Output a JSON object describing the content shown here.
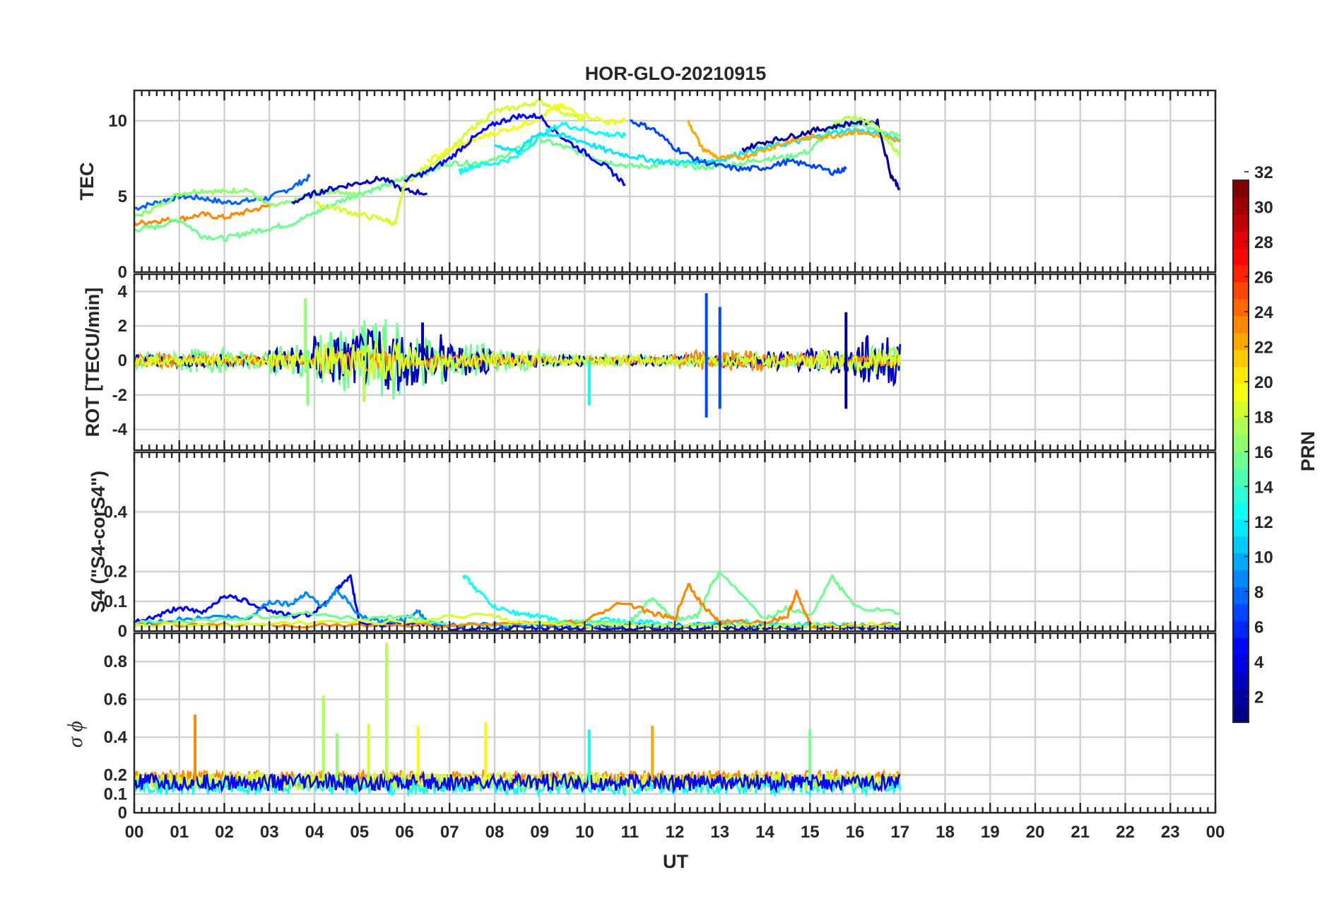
{
  "chart_data": {
    "type": "line",
    "title": "HOR-GLO-20210915",
    "xlabel": "UT",
    "x_ticks": [
      "00",
      "01",
      "02",
      "03",
      "04",
      "05",
      "06",
      "07",
      "08",
      "09",
      "10",
      "11",
      "12",
      "13",
      "14",
      "15",
      "16",
      "17",
      "18",
      "19",
      "20",
      "21",
      "22",
      "23",
      "00"
    ],
    "xlim": [
      0,
      24
    ],
    "grid": true,
    "colorbar": {
      "label": "PRN",
      "range": [
        1,
        32
      ],
      "ticks": [
        "2",
        "4",
        "6",
        "8",
        "10",
        "12",
        "14",
        "16",
        "18",
        "20",
        "22",
        "24",
        "26",
        "28",
        "30",
        "32"
      ],
      "colormap": "jet"
    },
    "panels": [
      {
        "ylabel": "TEC",
        "ylim": [
          0,
          12
        ],
        "yticks": [
          "0",
          "5",
          "10"
        ],
        "series": [
          {
            "prn": 8,
            "x": [
              0,
              0.5,
              1,
              1.5,
              2,
              2.5,
              3,
              3.5,
              3.9
            ],
            "y": [
              4.2,
              4.6,
              5.0,
              4.9,
              4.6,
              4.7,
              4.9,
              5.6,
              6.3
            ]
          },
          {
            "prn": 17,
            "x": [
              0,
              0.5,
              1,
              1.5,
              2,
              2.5,
              3,
              3.5,
              4,
              4.5,
              5.0
            ],
            "y": [
              3.6,
              4.3,
              5.2,
              5.4,
              5.3,
              5.5,
              4.3,
              4.6,
              5.2,
              5.4,
              5.0
            ]
          },
          {
            "prn": 24,
            "x": [
              0,
              0.5,
              1,
              1.5,
              2,
              2.5,
              3.0
            ],
            "y": [
              3.2,
              3.4,
              3.5,
              3.8,
              3.6,
              4.0,
              4.4
            ]
          },
          {
            "prn": 16,
            "x": [
              0,
              0.5,
              1,
              1.5,
              2,
              2.5,
              3,
              3.5,
              4,
              4.5,
              5,
              5.5,
              6,
              6.5,
              7,
              7.5,
              8,
              8.5,
              9,
              9.5,
              10,
              10.5,
              11,
              11.5,
              12,
              12.5,
              13,
              13.5,
              14,
              14.5,
              15,
              15.5,
              16,
              16.5,
              17
            ],
            "y": [
              2.8,
              3.0,
              3.5,
              2.4,
              2.2,
              2.6,
              2.9,
              3.2,
              3.9,
              4.6,
              5.2,
              5.6,
              6.2,
              6.6,
              7.2,
              7.2,
              7.4,
              8.1,
              8.8,
              8.3,
              7.8,
              7.3,
              7.0,
              7.0,
              7.3,
              6.9,
              7.0,
              7.2,
              7.5,
              7.6,
              8.0,
              9.6,
              9.8,
              9.3,
              9.0
            ]
          },
          {
            "prn": 3,
            "x": [
              3.5,
              4,
              4.5,
              5,
              5.5,
              6,
              6.5
            ],
            "y": [
              4.6,
              5.2,
              5.6,
              5.9,
              6.2,
              5.4,
              5.2
            ]
          },
          {
            "prn": 19,
            "x": [
              4,
              4.5,
              5,
              5.5,
              5.8,
              6,
              6.5,
              7,
              7.5,
              8,
              8.5,
              9,
              9.5,
              10.0
            ],
            "y": [
              4.5,
              4.2,
              3.8,
              3.5,
              3.2,
              5.9,
              7.0,
              8.0,
              9.5,
              10.6,
              10.9,
              11.3,
              10.6,
              10.0
            ]
          },
          {
            "prn": 20,
            "x": [
              6.5,
              7,
              7.5,
              8,
              8.5,
              9,
              9.4,
              9.8,
              10.5,
              10.9
            ],
            "y": [
              7.3,
              8.1,
              8.7,
              9.2,
              9.6,
              10.2,
              11.0,
              10.6,
              9.9,
              10.0
            ]
          },
          {
            "prn": 5,
            "x": [
              6.0,
              6.5,
              7,
              7.5,
              8,
              8.5,
              9,
              9.5,
              10,
              10.5,
              10.9
            ],
            "y": [
              6.1,
              6.6,
              7.5,
              8.8,
              9.8,
              10.3,
              10.3,
              8.9,
              7.9,
              6.9,
              5.8
            ]
          },
          {
            "prn": 13,
            "x": [
              7.2,
              7.5,
              8,
              8.5,
              9,
              9.5,
              10,
              10.5,
              10.9
            ],
            "y": [
              6.6,
              7.0,
              7.2,
              7.6,
              9.0,
              9.8,
              9.4,
              9.1,
              9.0
            ]
          },
          {
            "prn": 12,
            "x": [
              8.0,
              8.5,
              9,
              9.5,
              10,
              10.5,
              11,
              11.5,
              12,
              12.5,
              13,
              13.5,
              14,
              14.5,
              15,
              15.5,
              16,
              16.5,
              17
            ],
            "y": [
              8.4,
              8.0,
              9.2,
              9.0,
              8.6,
              8.0,
              7.7,
              7.4,
              7.2,
              7.3,
              7.4,
              7.9,
              8.2,
              8.5,
              8.8,
              9.2,
              9.4,
              9.1,
              8.8
            ]
          },
          {
            "prn": 7,
            "x": [
              11,
              11.5,
              12,
              12.5,
              13,
              13.5,
              14,
              14.5,
              15,
              15.5,
              15.8
            ],
            "y": [
              10.0,
              9.5,
              8.2,
              7.4,
              7.0,
              6.8,
              6.9,
              7.3,
              7.1,
              6.6,
              6.8
            ]
          },
          {
            "prn": 23,
            "x": [
              12.3,
              12.6,
              13,
              13.5,
              14,
              14.5,
              15,
              15.5,
              16,
              16.5,
              17
            ],
            "y": [
              10.0,
              8.2,
              7.5,
              7.6,
              8.1,
              8.6,
              8.9,
              9.0,
              9.3,
              9.0,
              8.6
            ]
          },
          {
            "prn": 2,
            "x": [
              13.5,
              14,
              14.5,
              15,
              15.5,
              16,
              16.5,
              16.8,
              17
            ],
            "y": [
              8.1,
              8.6,
              8.9,
              9.3,
              9.6,
              9.9,
              9.9,
              6.4,
              5.5
            ]
          },
          {
            "prn": 18,
            "x": [
              15.5,
              16,
              16.5,
              17
            ],
            "y": [
              9.8,
              10.3,
              9.6,
              7.6
            ]
          }
        ]
      },
      {
        "ylabel": "ROT [TECU/min]",
        "ylim": [
          -5.2,
          5
        ],
        "yticks": [
          "-4",
          "-2",
          "0",
          "2",
          "4"
        ],
        "series": [
          {
            "prn": 16,
            "amplitude": [
              0.5,
              0.7,
              0.5,
              0.9,
              1.8,
              2.4,
              1.6,
              1.0,
              0.6,
              0.4,
              0.3,
              0.3,
              0.3,
              0.5,
              0.4,
              0.6,
              0.9,
              0.6,
              0.4
            ]
          },
          {
            "prn": 3,
            "amplitude": [
              0.4,
              0.4,
              0.3,
              0.8,
              1.5,
              1.8,
              1.6,
              0.9,
              0.4,
              0.3,
              0.2,
              0.3,
              0.3,
              0.4,
              0.6,
              0.8,
              1.5,
              1.0,
              0.7
            ]
          },
          {
            "prn": 24,
            "amplitude": [
              0.4,
              0.3,
              0.3,
              0.3,
              0.6,
              0.6,
              0.4,
              0.3,
              0.3,
              0.2,
              0.2,
              0.2,
              0.6,
              0.6,
              0.4,
              0.3,
              0.3,
              0.3,
              0.3
            ]
          },
          {
            "prn": 19,
            "amplitude": [
              0.3,
              0.3,
              0.3,
              0.5,
              1.0,
              1.2,
              0.8,
              0.5,
              0.4,
              0.3,
              0.3,
              0.3,
              0.3,
              0.4,
              0.4,
              0.6,
              0.8,
              0.5,
              0.4
            ]
          }
        ],
        "spikes": [
          {
            "x": 12.7,
            "y": 3.9,
            "prn": 7
          },
          {
            "x": 12.7,
            "y": -3.3,
            "prn": 7
          },
          {
            "x": 13.0,
            "y": 3.1,
            "prn": 7
          },
          {
            "x": 13.0,
            "y": -2.8,
            "prn": 7
          },
          {
            "x": 3.8,
            "y": 3.6,
            "prn": 17
          },
          {
            "x": 3.85,
            "y": -2.6,
            "prn": 17
          },
          {
            "x": 10.1,
            "y": -2.6,
            "prn": 13
          },
          {
            "x": 15.8,
            "y": 2.8,
            "prn": 2
          },
          {
            "x": 15.8,
            "y": -2.8,
            "prn": 2
          },
          {
            "x": 6.4,
            "y": 2.2,
            "prn": 3
          },
          {
            "x": 5.1,
            "y": -2.4,
            "prn": 18
          }
        ]
      },
      {
        "ylabel": "S4 (\"S4-corS4\")",
        "ylim": [
          0,
          0.6
        ],
        "yticks": [
          "0",
          "0.1",
          "0.2",
          "0.4"
        ],
        "series": [
          {
            "prn": 5,
            "x": [
              0,
              0.5,
              1,
              1.5,
              2,
              2.5,
              3,
              3.5,
              4,
              4.5,
              4.8,
              5,
              5.5,
              6,
              6.5,
              7,
              8,
              9,
              10,
              11,
              12,
              13,
              14,
              15,
              16,
              17
            ],
            "y": [
              0.03,
              0.05,
              0.08,
              0.06,
              0.12,
              0.1,
              0.07,
              0.05,
              0.06,
              0.14,
              0.18,
              0.03,
              0.02,
              0.03,
              0.02,
              0.01,
              0.01,
              0.01,
              0.01,
              0.01,
              0.01,
              0.01,
              0.01,
              0.01,
              0.01,
              0.01
            ]
          },
          {
            "prn": 9,
            "x": [
              0,
              1,
              2,
              2.5,
              3,
              3.5,
              3.8,
              4.2,
              4.5,
              5,
              5.5,
              6,
              6.3,
              6.5,
              7,
              8,
              9,
              10,
              11,
              12,
              13,
              14,
              15,
              16,
              17
            ],
            "y": [
              0.02,
              0.04,
              0.05,
              0.04,
              0.1,
              0.09,
              0.13,
              0.08,
              0.14,
              0.05,
              0.03,
              0.04,
              0.07,
              0.03,
              0.02,
              0.02,
              0.02,
              0.02,
              0.02,
              0.02,
              0.02,
              0.02,
              0.02,
              0.02,
              0.02
            ]
          },
          {
            "prn": 13,
            "x": [
              7.3,
              7.6,
              8,
              8.5,
              9,
              9.5,
              10,
              10.5,
              11,
              11.5,
              12,
              13,
              14,
              15,
              16,
              17
            ],
            "y": [
              0.19,
              0.14,
              0.08,
              0.06,
              0.05,
              0.03,
              0.03,
              0.04,
              0.03,
              0.03,
              0.02,
              0.03,
              0.03,
              0.02,
              0.02,
              0.02
            ]
          },
          {
            "prn": 16,
            "x": [
              0,
              1,
              2,
              3,
              4,
              5,
              6,
              7,
              8,
              9,
              10,
              11,
              11.5,
              12,
              12.5,
              12.8,
              13,
              14,
              14.5,
              15,
              15.5,
              16,
              17
            ],
            "y": [
              0.03,
              0.03,
              0.04,
              0.05,
              0.06,
              0.04,
              0.05,
              0.02,
              0.02,
              0.03,
              0.03,
              0.03,
              0.11,
              0.04,
              0.05,
              0.15,
              0.2,
              0.04,
              0.08,
              0.05,
              0.18,
              0.08,
              0.06
            ]
          },
          {
            "prn": 24,
            "x": [
              0,
              2,
              4,
              6,
              8,
              10,
              10.8,
              11.5,
              12,
              12.3,
              12.6,
              13,
              14,
              14.5,
              14.7,
              15,
              17
            ],
            "y": [
              0.02,
              0.02,
              0.02,
              0.02,
              0.02,
              0.03,
              0.1,
              0.06,
              0.04,
              0.16,
              0.09,
              0.03,
              0.03,
              0.05,
              0.13,
              0.02,
              0.02
            ]
          },
          {
            "prn": 19,
            "x": [
              0,
              2,
              4,
              6,
              7.8,
              8.5,
              9,
              10,
              11,
              12,
              13,
              14,
              15,
              16,
              17
            ],
            "y": [
              0.02,
              0.02,
              0.03,
              0.03,
              0.06,
              0.03,
              0.02,
              0.02,
              0.02,
              0.02,
              0.02,
              0.02,
              0.02,
              0.02,
              0.02
            ]
          }
        ]
      },
      {
        "ylabel": "σ ϕ",
        "ylim": [
          0,
          0.95
        ],
        "yticks": [
          "0",
          "0.1",
          "0.2",
          "0.4",
          "0.6",
          "0.8"
        ],
        "series": [
          {
            "prn": 24,
            "base": 0.18
          },
          {
            "prn": 13,
            "base": 0.14
          },
          {
            "prn": 19,
            "base": 0.17
          },
          {
            "prn": 5,
            "base": 0.16
          }
        ],
        "spikes": [
          {
            "x": 1.35,
            "y": 0.52,
            "prn": 24
          },
          {
            "x": 4.2,
            "y": 0.62,
            "prn": 18
          },
          {
            "x": 4.5,
            "y": 0.42,
            "prn": 17
          },
          {
            "x": 5.2,
            "y": 0.47,
            "prn": 19
          },
          {
            "x": 5.6,
            "y": 0.9,
            "prn": 18
          },
          {
            "x": 6.3,
            "y": 0.46,
            "prn": 20
          },
          {
            "x": 7.8,
            "y": 0.48,
            "prn": 20
          },
          {
            "x": 10.1,
            "y": 0.44,
            "prn": 13
          },
          {
            "x": 11.5,
            "y": 0.46,
            "prn": 23
          },
          {
            "x": 15.0,
            "y": 0.44,
            "prn": 16
          }
        ]
      }
    ]
  }
}
